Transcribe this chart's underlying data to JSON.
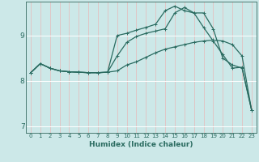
{
  "xlabel": "Humidex (Indice chaleur)",
  "bg_color": "#cce8e8",
  "line_color": "#2a6b60",
  "xlim": [
    -0.5,
    23.5
  ],
  "ylim": [
    6.85,
    9.75
  ],
  "yticks": [
    7,
    8,
    9
  ],
  "xticks": [
    0,
    1,
    2,
    3,
    4,
    5,
    6,
    7,
    8,
    9,
    10,
    11,
    12,
    13,
    14,
    15,
    16,
    17,
    18,
    19,
    20,
    21,
    22,
    23
  ],
  "line1_x": [
    0,
    1,
    2,
    3,
    4,
    5,
    6,
    7,
    8,
    9,
    10,
    11,
    12,
    13,
    14,
    15,
    16,
    17,
    18,
    19,
    20,
    21,
    22,
    23
  ],
  "line1_y": [
    8.18,
    8.38,
    8.28,
    8.22,
    8.2,
    8.19,
    8.18,
    8.18,
    8.19,
    8.22,
    8.35,
    8.42,
    8.52,
    8.62,
    8.7,
    8.75,
    8.8,
    8.85,
    8.88,
    8.9,
    8.88,
    8.8,
    8.55,
    7.35
  ],
  "line2_x": [
    0,
    1,
    2,
    3,
    4,
    5,
    6,
    7,
    8,
    9,
    10,
    11,
    12,
    13,
    14,
    15,
    16,
    17,
    18,
    19,
    20,
    21,
    22,
    23
  ],
  "line2_y": [
    8.18,
    8.38,
    8.28,
    8.22,
    8.2,
    8.19,
    8.18,
    8.18,
    8.19,
    8.55,
    8.85,
    8.98,
    9.05,
    9.1,
    9.15,
    9.5,
    9.62,
    9.5,
    9.5,
    9.15,
    8.5,
    8.35,
    8.28,
    7.35
  ],
  "line3_x": [
    0,
    1,
    2,
    3,
    4,
    5,
    6,
    7,
    8,
    9,
    10,
    11,
    12,
    13,
    14,
    15,
    16,
    17,
    18,
    19,
    20,
    21,
    22,
    23
  ],
  "line3_y": [
    8.18,
    8.38,
    8.28,
    8.22,
    8.2,
    8.19,
    8.18,
    8.18,
    8.19,
    9.0,
    9.05,
    9.12,
    9.18,
    9.25,
    9.55,
    9.65,
    9.55,
    9.5,
    9.18,
    8.88,
    8.58,
    8.28,
    8.3,
    7.35
  ]
}
